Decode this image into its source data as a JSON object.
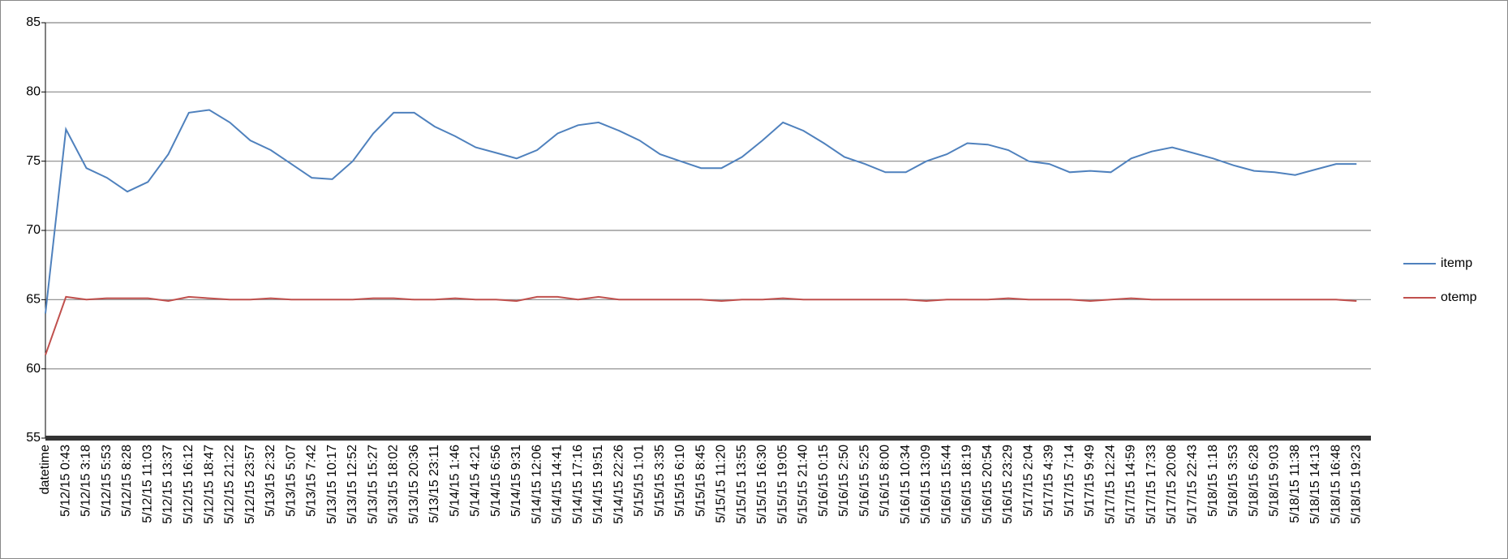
{
  "chart_data": {
    "type": "line",
    "categories": [
      "datetime",
      "5/12/15 0:43",
      "5/12/15 3:18",
      "5/12/15 5:53",
      "5/12/15 8:28",
      "5/12/15 11:03",
      "5/12/15 13:37",
      "5/12/15 16:12",
      "5/12/15 18:47",
      "5/12/15 21:22",
      "5/12/15 23:57",
      "5/13/15 2:32",
      "5/13/15 5:07",
      "5/13/15 7:42",
      "5/13/15 10:17",
      "5/13/15 12:52",
      "5/13/15 15:27",
      "5/13/15 18:02",
      "5/13/15 20:36",
      "5/13/15 23:11",
      "5/14/15 1:46",
      "5/14/15 4:21",
      "5/14/15 6:56",
      "5/14/15 9:31",
      "5/14/15 12:06",
      "5/14/15 14:41",
      "5/14/15 17:16",
      "5/14/15 19:51",
      "5/14/15 22:26",
      "5/15/15 1:01",
      "5/15/15 3:35",
      "5/15/15 6:10",
      "5/15/15 8:45",
      "5/15/15 11:20",
      "5/15/15 13:55",
      "5/15/15 16:30",
      "5/15/15 19:05",
      "5/15/15 21:40",
      "5/16/15 0:15",
      "5/16/15 2:50",
      "5/16/15 5:25",
      "5/16/15 8:00",
      "5/16/15 10:34",
      "5/16/15 13:09",
      "5/16/15 15:44",
      "5/16/15 18:19",
      "5/16/15 20:54",
      "5/16/15 23:29",
      "5/17/15 2:04",
      "5/17/15 4:39",
      "5/17/15 7:14",
      "5/17/15 9:49",
      "5/17/15 12:24",
      "5/17/15 14:59",
      "5/17/15 17:33",
      "5/17/15 20:08",
      "5/17/15 22:43",
      "5/18/15 1:18",
      "5/18/15 3:53",
      "5/18/15 6:28",
      "5/18/15 9:03",
      "5/18/15 11:38",
      "5/18/15 14:13",
      "5/18/15 16:48",
      "5/18/15 19:23"
    ],
    "series": [
      {
        "name": "itemp",
        "color": "#4f81bd",
        "values": [
          64,
          77.3,
          74.5,
          73.8,
          72.8,
          73.5,
          75.5,
          78.5,
          78.7,
          77.8,
          76.5,
          75.8,
          74.8,
          73.8,
          73.7,
          75,
          77,
          78.5,
          78.5,
          77.5,
          76.8,
          76,
          75.6,
          75.2,
          75.8,
          77,
          77.6,
          77.8,
          77.2,
          76.5,
          75.5,
          75,
          74.5,
          74.5,
          75.3,
          76.5,
          77.8,
          77.2,
          76.3,
          75.3,
          74.8,
          74.2,
          74.2,
          75,
          75.5,
          76.3,
          76.2,
          75.8,
          75,
          74.8,
          74.2,
          74.3,
          74.2,
          75.2,
          75.7,
          76,
          75.6,
          75.2,
          74.7,
          74.3,
          74.2,
          74,
          74.4,
          74.8,
          74.8
        ]
      },
      {
        "name": "otemp",
        "color": "#c0504d",
        "values": [
          61,
          65.2,
          65,
          65.1,
          65.1,
          65.1,
          64.9,
          65.2,
          65.1,
          65,
          65,
          65.1,
          65,
          65,
          65,
          65,
          65.1,
          65.1,
          65,
          65,
          65.1,
          65,
          65,
          64.9,
          65.2,
          65.2,
          65,
          65.2,
          65,
          65,
          65,
          65,
          65,
          64.9,
          65,
          65,
          65.1,
          65,
          65,
          65,
          65,
          65,
          65,
          64.9,
          65,
          65,
          65,
          65.1,
          65,
          65,
          65,
          64.9,
          65,
          65.1,
          65,
          65,
          65,
          65,
          65,
          65,
          65,
          65,
          65,
          65,
          64.9
        ]
      }
    ],
    "ylim": [
      55,
      85
    ],
    "yticks": [
      55,
      60,
      65,
      70,
      75,
      80,
      85
    ],
    "grid": true,
    "legend": "right"
  }
}
